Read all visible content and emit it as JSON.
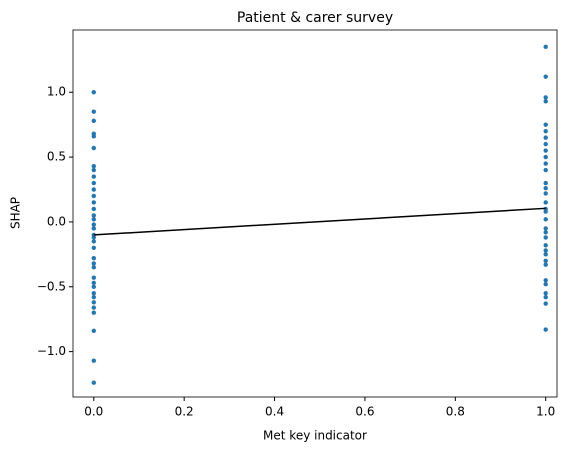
{
  "chart_data": {
    "type": "scatter",
    "title": "Patient & carer survey",
    "x_label": "Met key indicator",
    "y_label": "SHAP",
    "xlim": [
      -0.046,
      1.025
    ],
    "ylim": [
      -1.35,
      1.48
    ],
    "xticks": [
      {
        "value": 0,
        "label": "0.0"
      },
      0.2,
      0.4,
      0.6,
      0.8,
      {
        "value": 1,
        "label": "1.0"
      }
    ],
    "yticks": [
      {
        "value": -1,
        "label": "−1.0"
      },
      {
        "value": -0.5,
        "label": "−0.5"
      },
      {
        "value": 0,
        "label": "0.0"
      },
      {
        "value": 0.5,
        "label": "0.5"
      },
      {
        "value": 1,
        "label": "1.0"
      }
    ],
    "points": {
      "color": "#1f77b4",
      "x": [
        0,
        0,
        0,
        0,
        0,
        0,
        0,
        0,
        0,
        0,
        0,
        0,
        0,
        0,
        0,
        0,
        0,
        0,
        0,
        0,
        0,
        0,
        0,
        0,
        0,
        0,
        0,
        0,
        0,
        0,
        0,
        0,
        0,
        0,
        0,
        0,
        1,
        1,
        1,
        1,
        1,
        1,
        1,
        1,
        1,
        1,
        1,
        1,
        1,
        1,
        1,
        1,
        1,
        1,
        1,
        1,
        1,
        1,
        1,
        1,
        1,
        1,
        1,
        1,
        1,
        1,
        1,
        1,
        1
      ],
      "values": [
        1.0,
        0.85,
        0.78,
        0.68,
        0.66,
        0.57,
        0.43,
        0.4,
        0.35,
        0.3,
        0.25,
        0.2,
        0.15,
        0.1,
        0.05,
        0.02,
        -0.02,
        -0.05,
        -0.1,
        -0.12,
        -0.15,
        -0.2,
        -0.28,
        -0.32,
        -0.35,
        -0.43,
        -0.47,
        -0.5,
        -0.55,
        -0.58,
        -0.62,
        -0.66,
        -0.7,
        -0.84,
        -1.07,
        -1.24,
        1.35,
        1.12,
        0.96,
        0.93,
        0.75,
        0.7,
        0.65,
        0.6,
        0.55,
        0.5,
        0.45,
        0.4,
        0.3,
        0.26,
        0.22,
        0.15,
        0.1,
        0.08,
        0.02,
        -0.05,
        -0.08,
        -0.12,
        -0.18,
        -0.22,
        -0.25,
        -0.3,
        -0.33,
        -0.45,
        -0.48,
        -0.55,
        -0.58,
        -0.63,
        -0.83
      ]
    },
    "line": {
      "color": "#000000",
      "x": [
        0,
        1
      ],
      "values": [
        -0.1,
        0.105
      ]
    }
  }
}
